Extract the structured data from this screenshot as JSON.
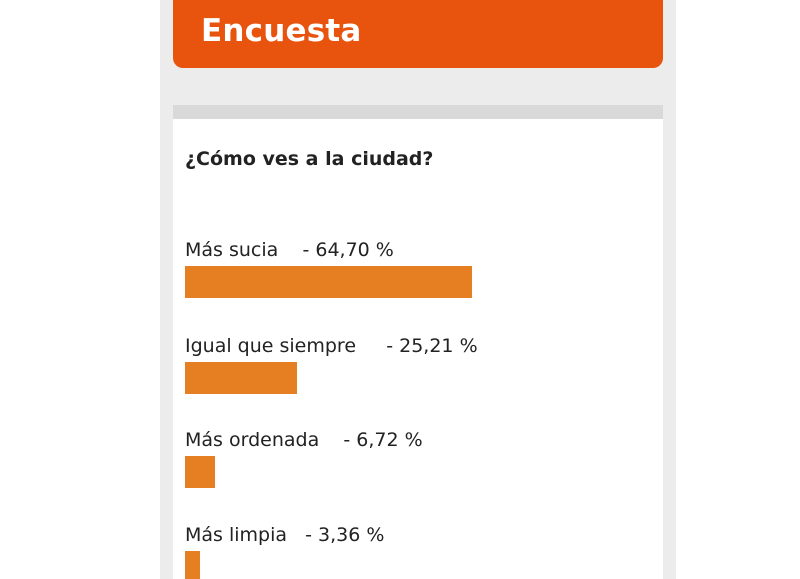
{
  "header": {
    "title": "Encuesta"
  },
  "poll": {
    "question": "¿Cómo ves a la ciudad?",
    "bar_color": "#e67e22",
    "options": [
      {
        "label": "Más sucia",
        "percent_text": "- 64,70 %",
        "percent": 64.7
      },
      {
        "label": "Igual que siempre",
        "percent_text": "- 25,21 %",
        "percent": 25.21
      },
      {
        "label": "Más ordenada",
        "percent_text": "- 6,72 %",
        "percent": 6.72
      },
      {
        "label": "Más limpia",
        "percent_text": "- 3,36 %",
        "percent": 3.36
      }
    ]
  },
  "theme": {
    "accent": "#e8530e",
    "panel_divider": "#d9d9d9",
    "background": "#ececec"
  }
}
